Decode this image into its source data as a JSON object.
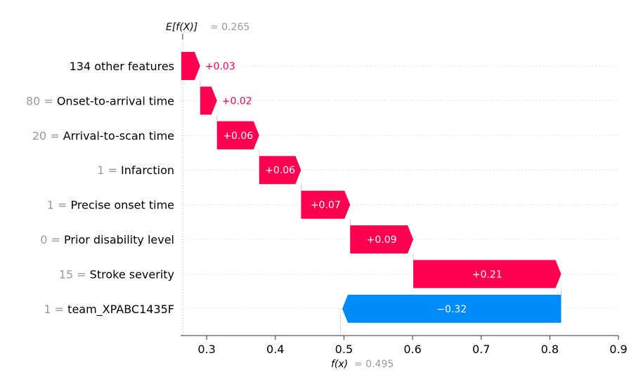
{
  "chart_data": {
    "type": "waterfall",
    "xlim": [
      0.262,
      0.9
    ],
    "ticks": [
      0.3,
      0.4,
      0.5,
      0.6,
      0.7,
      0.8,
      0.9
    ],
    "tick_labels": [
      "0.3",
      "0.4",
      "0.5",
      "0.6",
      "0.7",
      "0.8",
      "0.9"
    ],
    "base_value": 0.265,
    "base_label": "E[f(X)]",
    "base_value_text": "= 0.265",
    "output_value": 0.495,
    "output_label": "f(x)",
    "output_value_text": "= 0.495",
    "features": [
      {
        "value_text": "",
        "name": "134 other features",
        "start": 0.263,
        "end": 0.2905,
        "label": "+0.03"
      },
      {
        "value_text": "80 =",
        "name": "Onset-to-arrival time",
        "start": 0.2905,
        "end": 0.315,
        "label": "+0.02"
      },
      {
        "value_text": "20 =",
        "name": "Arrival-to-scan time",
        "start": 0.315,
        "end": 0.3765,
        "label": "+0.06"
      },
      {
        "value_text": "1 =",
        "name": "Infarction",
        "start": 0.3765,
        "end": 0.4375,
        "label": "+0.06"
      },
      {
        "value_text": "1 =",
        "name": "Precise onset time",
        "start": 0.4375,
        "end": 0.509,
        "label": "+0.07"
      },
      {
        "value_text": "0 =",
        "name": "Prior disability level",
        "start": 0.509,
        "end": 0.601,
        "label": "+0.09"
      },
      {
        "value_text": "15 =",
        "name": "Stroke severity",
        "start": 0.601,
        "end": 0.8165,
        "label": "+0.21"
      },
      {
        "value_text": "1 =",
        "name": "team_XPABC1435F",
        "start": 0.8165,
        "end": 0.4975,
        "label": "−0.32"
      }
    ],
    "colors": {
      "positive": "#ff0051",
      "negative": "#008bfb"
    }
  }
}
